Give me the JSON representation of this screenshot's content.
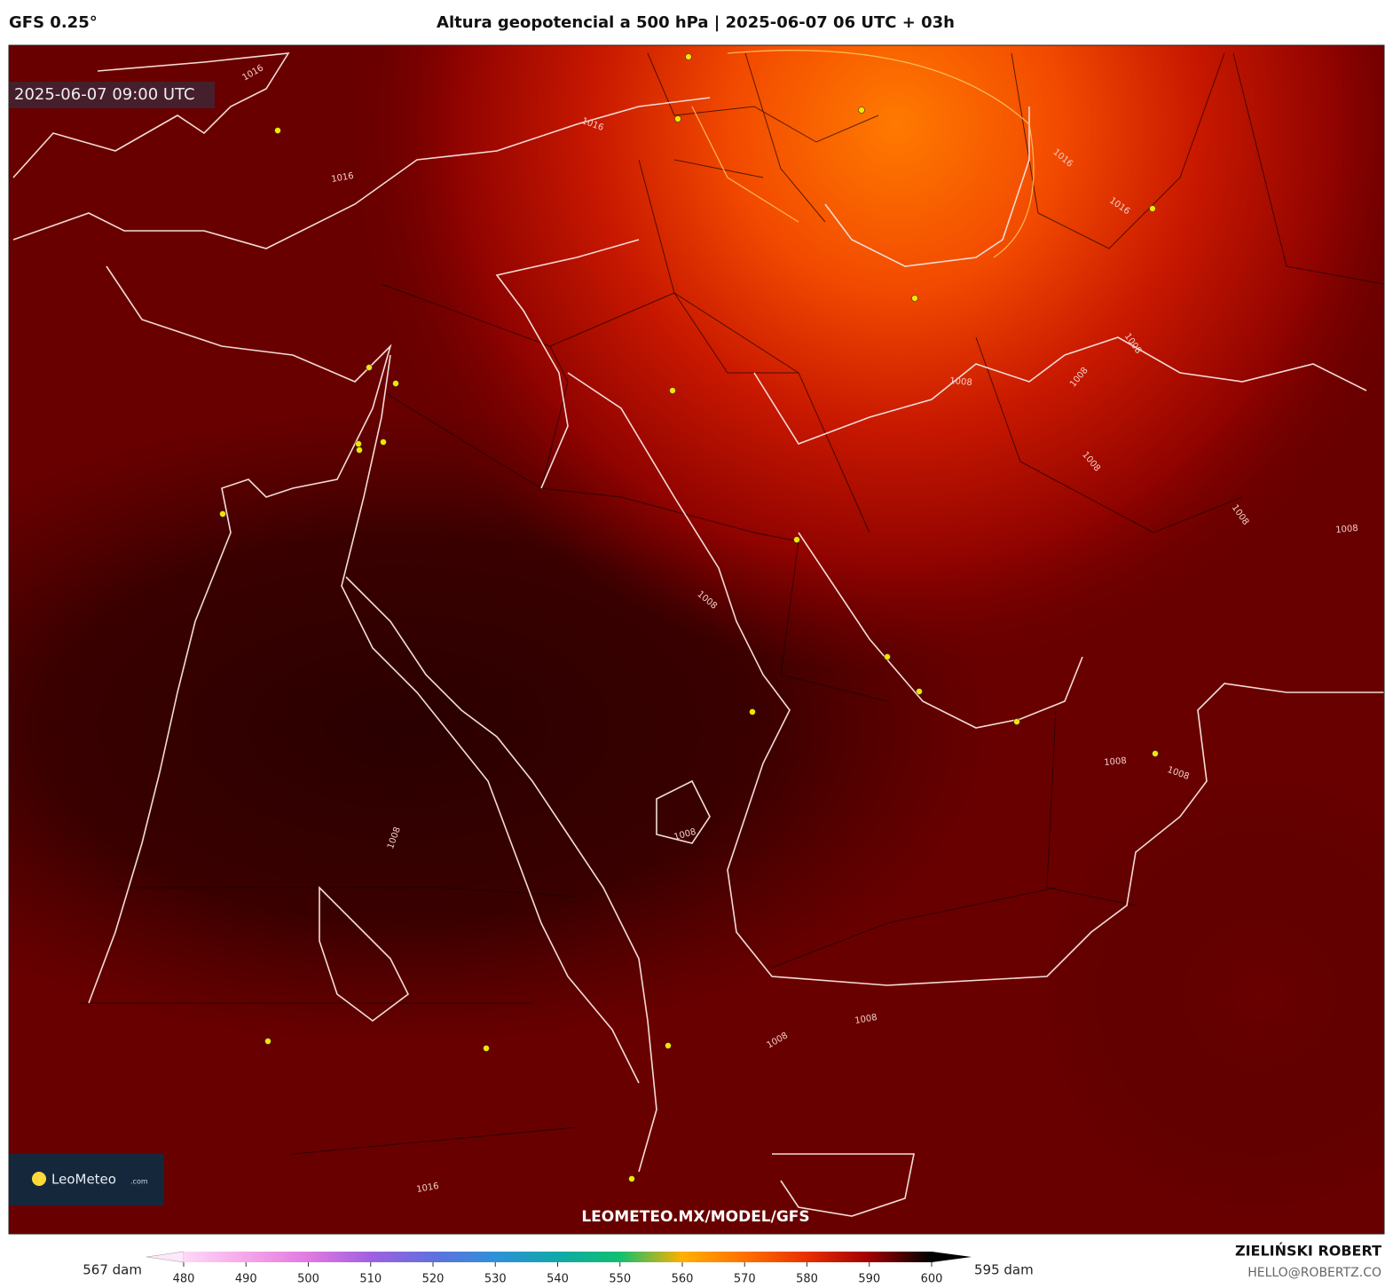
{
  "header": {
    "model": "GFS 0.25°",
    "title": "Altura geopotencial a 500 hPa | 2025-06-07 06 UTC + 03h"
  },
  "map": {
    "timestamp": "2025-06-07 09:00 UTC",
    "watermark": "LEOMETEO.MX/MODEL/GFS",
    "logo": {
      "name": "LeoMeteo",
      "suffix": ".com"
    },
    "isobar_labels": [
      "1016",
      "1016",
      "1016",
      "1016",
      "1016",
      "1008",
      "1008",
      "1008",
      "1008",
      "1008",
      "1008",
      "1008",
      "1008",
      "1008",
      "1008",
      "1008",
      "1008",
      "1008",
      "1016"
    ]
  },
  "colorbar": {
    "min_label": "567 dam",
    "max_label": "595 dam",
    "ticks": [
      480,
      490,
      500,
      510,
      520,
      530,
      540,
      550,
      560,
      570,
      580,
      590,
      600
    ],
    "colors": [
      "#ffd8f6",
      "#f4a6ea",
      "#e07ae0",
      "#a060e0",
      "#6070e0",
      "#3090d8",
      "#10a8a8",
      "#10c070",
      "#ffb000",
      "#ff7000",
      "#e83000",
      "#a00000",
      "#000000"
    ]
  },
  "footer": {
    "author": "ZIELIŃSKI ROBERT",
    "email": "HELLO@ROBERTZ.CO"
  }
}
